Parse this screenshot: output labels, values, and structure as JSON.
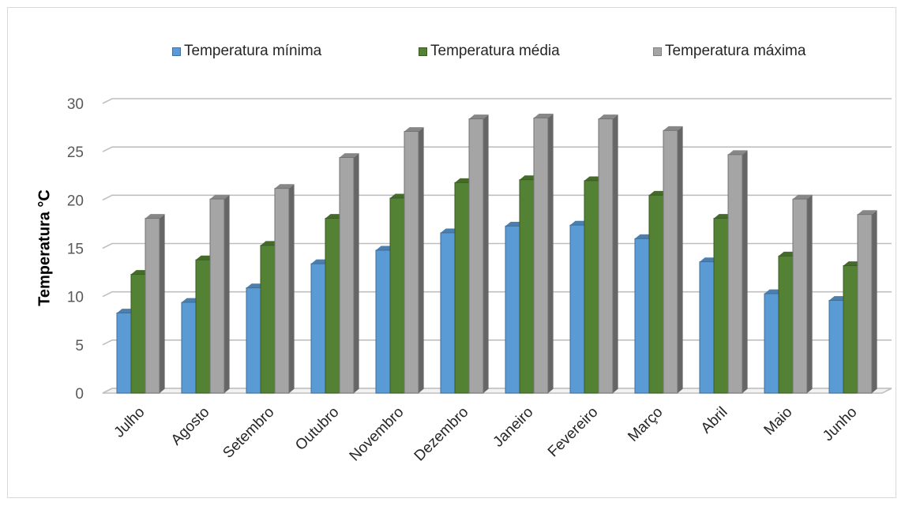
{
  "chart_data": {
    "type": "bar",
    "title": "",
    "xlabel": "",
    "ylabel": "Temperatura °C",
    "ylim": [
      0,
      30
    ],
    "yticks": [
      0,
      5,
      10,
      15,
      20,
      25,
      30
    ],
    "grid": true,
    "legend_position": "top",
    "categories": [
      "Julho",
      "Agosto",
      "Setembro",
      "Outubro",
      "Novembro",
      "Dezembro",
      "Janeiro",
      "Fevereiro",
      "Março",
      "Abril",
      "Maio",
      "Junho"
    ],
    "series": [
      {
        "name": "Temperatura mínima",
        "color": "#5b9bd5",
        "values": [
          8.3,
          9.4,
          10.9,
          13.4,
          14.8,
          16.6,
          17.3,
          17.4,
          16.0,
          13.6,
          10.3,
          9.6
        ]
      },
      {
        "name": "Temperatura média",
        "color": "#548235",
        "values": [
          12.3,
          13.8,
          15.3,
          18.1,
          20.2,
          21.8,
          22.1,
          22.0,
          20.5,
          18.1,
          14.2,
          13.2
        ]
      },
      {
        "name": "Temperatura máxima",
        "color": "#a5a5a5",
        "values": [
          18.1,
          20.1,
          21.2,
          24.4,
          27.1,
          28.4,
          28.5,
          28.4,
          27.2,
          24.7,
          20.1,
          18.5
        ]
      }
    ]
  }
}
